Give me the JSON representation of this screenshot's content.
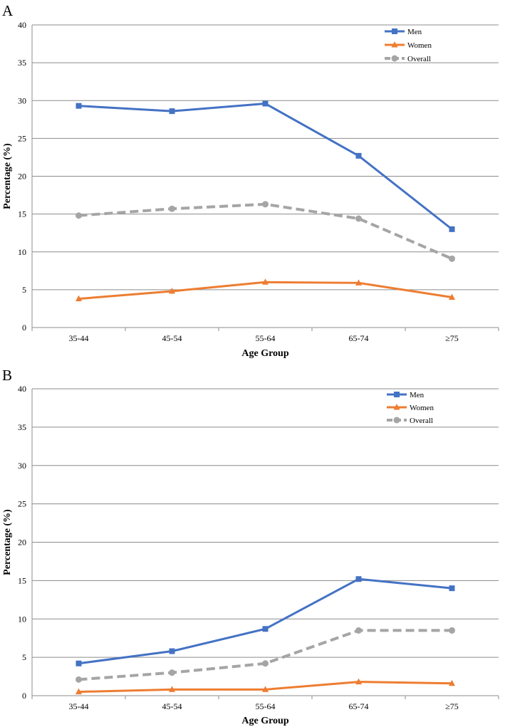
{
  "chart_data": [
    {
      "panel": "A",
      "type": "line",
      "categories": [
        "35-44",
        "45-54",
        "55-64",
        "65-74",
        "≥75"
      ],
      "series": [
        {
          "name": "Men",
          "color": "#4472c4",
          "marker": "square",
          "dash": false,
          "values": [
            29.3,
            28.6,
            29.6,
            22.7,
            13.0
          ]
        },
        {
          "name": "Women",
          "color": "#ed7d31",
          "marker": "triangle",
          "dash": false,
          "values": [
            3.8,
            4.8,
            6.0,
            5.9,
            4.0
          ]
        },
        {
          "name": "Overall",
          "color": "#a5a5a5",
          "marker": "circle",
          "dash": true,
          "values": [
            14.8,
            15.7,
            16.3,
            14.4,
            9.1
          ]
        }
      ],
      "ylim": [
        0,
        40
      ],
      "yticks": [
        0,
        5,
        10,
        15,
        20,
        25,
        30,
        35,
        40
      ],
      "xlabel": "Age Group",
      "ylabel": "Percentage (%)",
      "legend_position": "top-right",
      "grid": true
    },
    {
      "panel": "B",
      "type": "line",
      "categories": [
        "35-44",
        "45-54",
        "55-64",
        "65-74",
        "≥75"
      ],
      "series": [
        {
          "name": "Men",
          "color": "#4472c4",
          "marker": "square",
          "dash": false,
          "values": [
            4.2,
            5.8,
            8.7,
            15.2,
            14.0
          ]
        },
        {
          "name": "Women",
          "color": "#ed7d31",
          "marker": "triangle",
          "dash": false,
          "values": [
            0.5,
            0.8,
            0.8,
            1.8,
            1.6
          ]
        },
        {
          "name": "Overall",
          "color": "#a5a5a5",
          "marker": "circle",
          "dash": true,
          "values": [
            2.1,
            3.0,
            4.2,
            8.5,
            8.5
          ]
        }
      ],
      "ylim": [
        0,
        40
      ],
      "yticks": [
        0,
        5,
        10,
        15,
        20,
        25,
        30,
        35,
        40
      ],
      "xlabel": "Age Group",
      "ylabel": "Percentage (%)",
      "legend_position": "top-right",
      "grid": true
    }
  ]
}
